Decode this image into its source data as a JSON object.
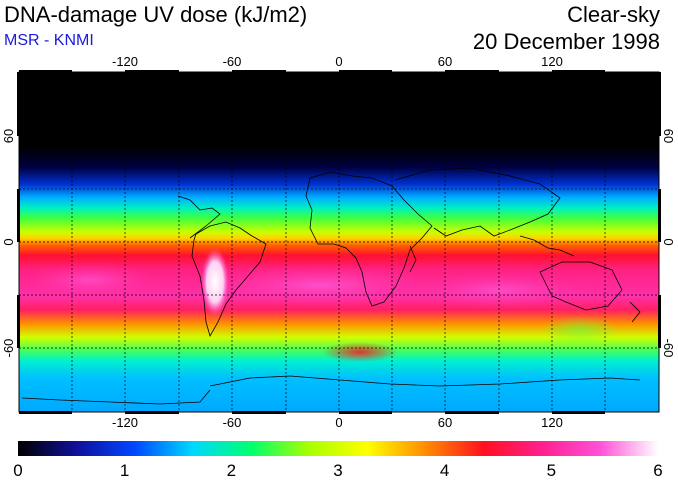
{
  "header": {
    "title": "DNA-damage UV dose (kJ/m2)",
    "source": "MSR - KNMI",
    "condition": "Clear-sky",
    "date": "20 December 1998"
  },
  "axes": {
    "lon_ticks": [
      "-120",
      "-60",
      "0",
      "60",
      "120"
    ],
    "lat_ticks": [
      "60",
      "0",
      "-60"
    ]
  },
  "colorbar": {
    "min": 0,
    "max": 6,
    "tick_labels": [
      "0",
      "1",
      "2",
      "3",
      "4",
      "5",
      "6"
    ]
  },
  "colors": {
    "subtitle": "#1a1ae0",
    "scale": [
      "#000000",
      "#10109a",
      "#0046ff",
      "#00d8ff",
      "#00ff70",
      "#a8ff00",
      "#ffff00",
      "#ff8c00",
      "#ff1020",
      "#ff208e",
      "#ff50d8",
      "#ffffff"
    ]
  }
}
